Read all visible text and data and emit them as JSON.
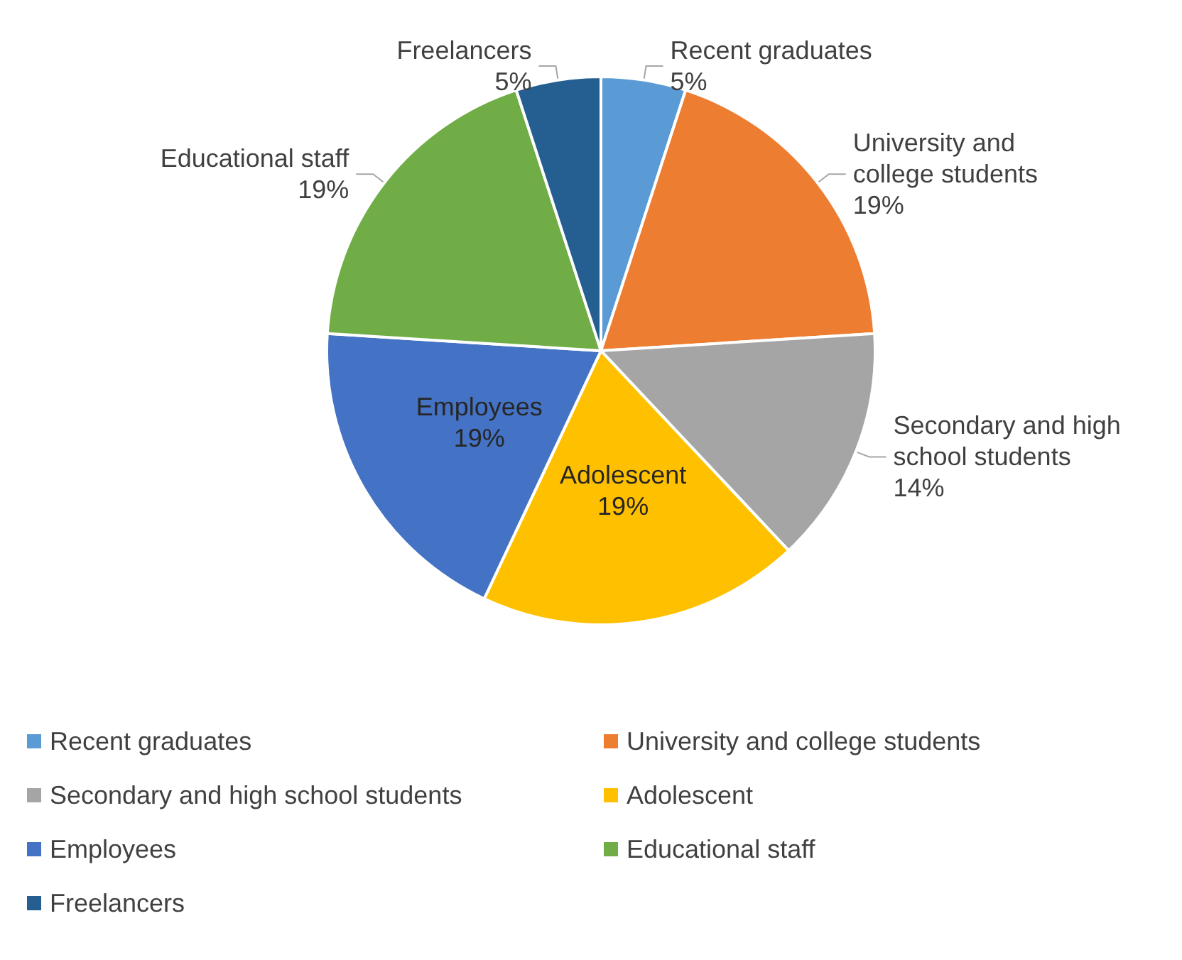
{
  "chart_data": {
    "type": "pie",
    "categories": [
      "Recent graduates",
      "University and college students",
      "Secondary and high school students",
      "Adolescent",
      "Employees",
      "Educational staff",
      "Freelancers"
    ],
    "values": [
      5,
      19,
      14,
      19,
      19,
      19,
      5
    ],
    "colors": [
      "#5b9bd5",
      "#ed7d31",
      "#a5a5a5",
      "#ffc000",
      "#4472c4",
      "#70ad47",
      "#255e91"
    ],
    "value_labels": [
      "5%",
      "19%",
      "14%",
      "19%",
      "19%",
      "19%",
      "5%"
    ],
    "legend": "bottom"
  }
}
